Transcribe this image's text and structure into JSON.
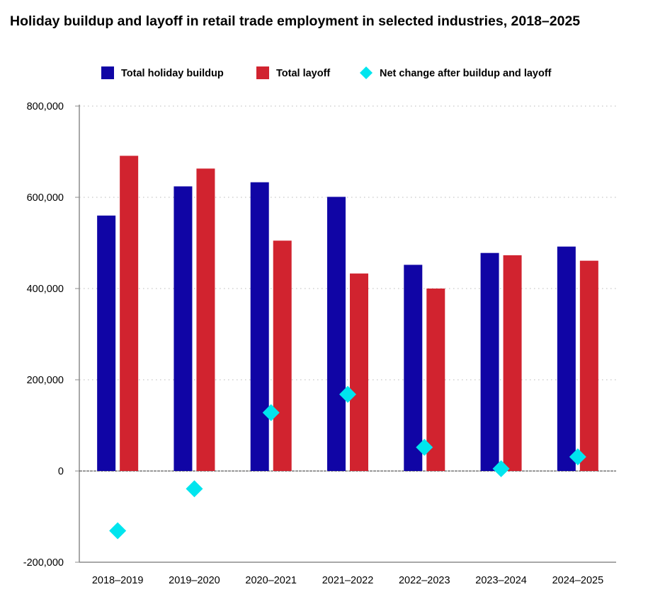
{
  "chart_data": {
    "type": "bar",
    "title": "Holiday buildup and layoff in retail trade employment in selected industries, 2018–2025",
    "xlabel": "",
    "ylabel": "",
    "ylim": [
      -200000,
      800000
    ],
    "yticks": [
      -200000,
      0,
      200000,
      400000,
      600000,
      800000
    ],
    "ytick_labels": [
      "-200,000",
      "0",
      "200,000",
      "400,000",
      "600,000",
      "800,000"
    ],
    "categories": [
      "2018–2019",
      "2019–2020",
      "2020–2021",
      "2021–2022",
      "2022–2023",
      "2023–2024",
      "2024–2025"
    ],
    "series": [
      {
        "name": "Total holiday buildup",
        "type": "bar",
        "color": "#1005a5",
        "values": [
          560000,
          624000,
          633000,
          601000,
          452000,
          478000,
          492000
        ]
      },
      {
        "name": "Total layoff",
        "type": "bar",
        "color": "#d1232f",
        "values": [
          691000,
          663000,
          505000,
          433000,
          400000,
          473000,
          461000
        ]
      },
      {
        "name": "Net change after buildup and layoff",
        "type": "scatter",
        "marker": "diamond",
        "color": "#00e5ee",
        "values": [
          -131000,
          -39000,
          128000,
          168000,
          52000,
          5000,
          31000
        ]
      }
    ],
    "grid": true,
    "legend_position": "top"
  }
}
